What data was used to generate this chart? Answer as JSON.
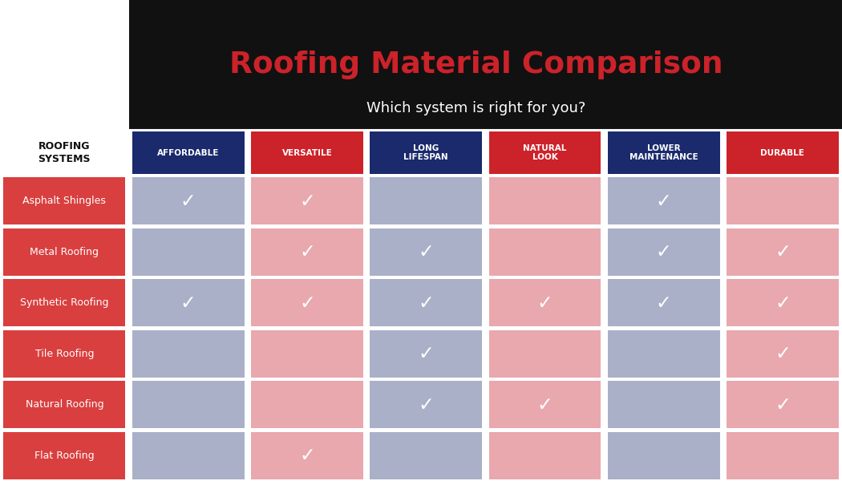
{
  "title": "Roofing Material Comparison",
  "subtitle": "Which system is right for you?",
  "header_label": "ROOFING\nSYSTEMS",
  "columns": [
    "AFFORDABLE",
    "VERSATILE",
    "LONG\nLIFESPAN",
    "NATURAL\nLOOK",
    "LOWER\nMAINTENANCE",
    "DURABLE"
  ],
  "col_colors": [
    "#1a2a6c",
    "#cc2229",
    "#1a2a6c",
    "#cc2229",
    "#1a2a6c",
    "#cc2229"
  ],
  "rows": [
    "Asphalt Shingles",
    "Metal Roofing",
    "Synthetic Roofing",
    "Tile Roofing",
    "Natural Roofing",
    "Flat Roofing"
  ],
  "row_color": "#d93f3f",
  "cell_blue": "#aab0c8",
  "cell_pink": "#e8a8ae",
  "checks": [
    [
      1,
      1,
      0,
      0,
      1,
      0
    ],
    [
      0,
      1,
      1,
      0,
      1,
      1
    ],
    [
      1,
      1,
      1,
      1,
      1,
      1
    ],
    [
      0,
      0,
      1,
      0,
      0,
      1
    ],
    [
      0,
      0,
      1,
      1,
      0,
      1
    ],
    [
      0,
      1,
      0,
      0,
      0,
      0
    ]
  ],
  "bg_color": "#111111",
  "white_bg": "#ffffff",
  "title_color": "#cc2229",
  "subtitle_color": "#ffffff",
  "check_color": "#ffffff",
  "navy": "#1a2a6c",
  "red": "#cc2229",
  "logo_grey": "#888888",
  "logo_darkgrey": "#555555"
}
